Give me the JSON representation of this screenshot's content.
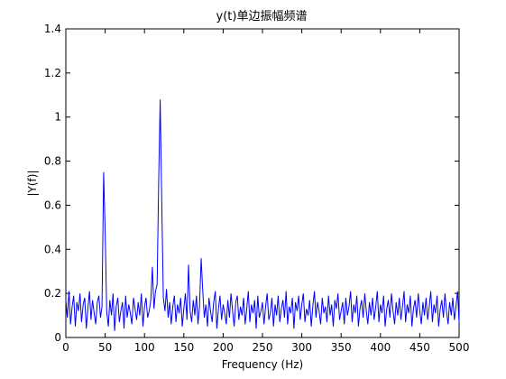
{
  "chart_data": {
    "type": "line",
    "title": "y(t)单边振幅频谱",
    "xlabel": "Frequency (Hz)",
    "ylabel": "|Y(f)|",
    "xlim": [
      0,
      500
    ],
    "ylim": [
      0,
      1.4
    ],
    "x_ticks": [
      0,
      50,
      100,
      150,
      200,
      250,
      300,
      350,
      400,
      450,
      500
    ],
    "y_ticks": [
      0,
      0.2,
      0.4,
      0.6,
      0.8,
      1,
      1.2,
      1.4
    ],
    "x_tick_labels": [
      "0",
      "50",
      "100",
      "150",
      "200",
      "250",
      "300",
      "350",
      "400",
      "450",
      "500"
    ],
    "y_tick_labels": [
      "0",
      "0.2",
      "0.4",
      "0.6",
      "0.8",
      "1",
      "1.2",
      "1.4"
    ],
    "grid": false,
    "box": true,
    "series": [
      {
        "color": "#0000ff",
        "x_start": 0,
        "x_step": 2,
        "values": [
          0.17,
          0.09,
          0.21,
          0.06,
          0.14,
          0.19,
          0.05,
          0.16,
          0.12,
          0.2,
          0.07,
          0.15,
          0.18,
          0.04,
          0.13,
          0.21,
          0.08,
          0.17,
          0.11,
          0.06,
          0.16,
          0.19,
          0.09,
          0.14,
          0.75,
          0.48,
          0.12,
          0.05,
          0.17,
          0.1,
          0.2,
          0.03,
          0.14,
          0.18,
          0.07,
          0.12,
          0.16,
          0.04,
          0.19,
          0.09,
          0.15,
          0.11,
          0.06,
          0.18,
          0.13,
          0.08,
          0.16,
          0.1,
          0.2,
          0.05,
          0.14,
          0.18,
          0.09,
          0.12,
          0.17,
          0.32,
          0.13,
          0.21,
          0.24,
          0.7,
          1.08,
          0.6,
          0.18,
          0.12,
          0.22,
          0.09,
          0.16,
          0.06,
          0.14,
          0.19,
          0.07,
          0.15,
          0.11,
          0.18,
          0.05,
          0.13,
          0.2,
          0.08,
          0.33,
          0.12,
          0.07,
          0.17,
          0.1,
          0.19,
          0.06,
          0.14,
          0.36,
          0.22,
          0.09,
          0.15,
          0.05,
          0.18,
          0.12,
          0.07,
          0.16,
          0.21,
          0.04,
          0.13,
          0.19,
          0.08,
          0.15,
          0.11,
          0.06,
          0.17,
          0.09,
          0.2,
          0.12,
          0.05,
          0.16,
          0.19,
          0.08,
          0.14,
          0.1,
          0.18,
          0.06,
          0.13,
          0.21,
          0.07,
          0.15,
          0.11,
          0.17,
          0.04,
          0.19,
          0.09,
          0.12,
          0.16,
          0.06,
          0.14,
          0.2,
          0.08,
          0.11,
          0.18,
          0.05,
          0.15,
          0.1,
          0.19,
          0.07,
          0.13,
          0.17,
          0.09,
          0.21,
          0.06,
          0.14,
          0.11,
          0.18,
          0.04,
          0.16,
          0.12,
          0.19,
          0.08,
          0.15,
          0.2,
          0.07,
          0.13,
          0.1,
          0.17,
          0.05,
          0.14,
          0.21,
          0.09,
          0.16,
          0.12,
          0.06,
          0.18,
          0.11,
          0.14,
          0.07,
          0.19,
          0.1,
          0.15,
          0.05,
          0.17,
          0.13,
          0.2,
          0.08,
          0.12,
          0.16,
          0.06,
          0.18,
          0.1,
          0.14,
          0.21,
          0.07,
          0.15,
          0.11,
          0.19,
          0.05,
          0.13,
          0.17,
          0.09,
          0.2,
          0.12,
          0.06,
          0.16,
          0.1,
          0.18,
          0.08,
          0.14,
          0.21,
          0.07,
          0.15,
          0.11,
          0.19,
          0.05,
          0.13,
          0.17,
          0.09,
          0.2,
          0.12,
          0.06,
          0.16,
          0.1,
          0.18,
          0.08,
          0.14,
          0.21,
          0.07,
          0.15,
          0.11,
          0.19,
          0.05,
          0.13,
          0.17,
          0.09,
          0.2,
          0.12,
          0.06,
          0.16,
          0.1,
          0.18,
          0.08,
          0.14,
          0.21,
          0.07,
          0.15,
          0.11,
          0.19,
          0.05,
          0.13,
          0.17,
          0.09,
          0.2,
          0.12,
          0.06,
          0.16,
          0.1,
          0.18,
          0.08,
          0.14,
          0.21,
          0.07
        ]
      }
    ]
  }
}
